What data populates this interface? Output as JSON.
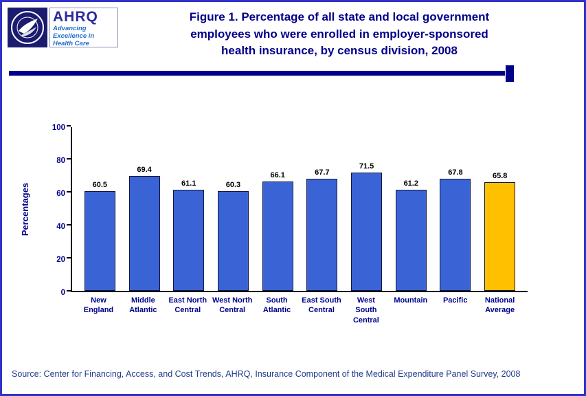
{
  "header": {
    "ahrq": {
      "acronym": "AHRQ",
      "tagline_lines": [
        "Advancing",
        "Excellence in",
        "Health Care"
      ]
    },
    "title_lines": [
      "Figure 1. Percentage of all state and local government",
      "employees who were enrolled in employer-sponsored",
      "health insurance, by census division, 2008"
    ]
  },
  "chart_data": {
    "type": "bar",
    "title": "Figure 1. Percentage of all state and local government employees who were enrolled in employer-sponsored health insurance, by census division, 2008",
    "categories": [
      "New England",
      "Middle Atlantic",
      "East North Central",
      "West North Central",
      "South Atlantic",
      "East South Central",
      "West South Central",
      "Mountain",
      "Pacific",
      "National Average"
    ],
    "values": [
      60.5,
      69.4,
      61.1,
      60.3,
      66.1,
      67.7,
      71.5,
      61.2,
      67.8,
      65.8
    ],
    "ylabel": "Percentages",
    "xlabel": "",
    "ylim": [
      0,
      100
    ],
    "yticks": [
      0,
      20,
      40,
      60,
      80,
      100
    ],
    "grid": false,
    "legend": "none",
    "bar_color": "#3a64d6",
    "highlight_color": "#ffc000",
    "highlight_index": 9
  },
  "footer": {
    "source": "Source: Center for Financing, Access, and Cost Trends, AHRQ, Insurance Component of the Medical Expenditure Panel Survey, 2008"
  },
  "colors": {
    "title_text": "#00008B",
    "frame_border": "#3232c8",
    "rule": "#00008B",
    "axis_text": "#00008B",
    "value_text": "#000000"
  }
}
